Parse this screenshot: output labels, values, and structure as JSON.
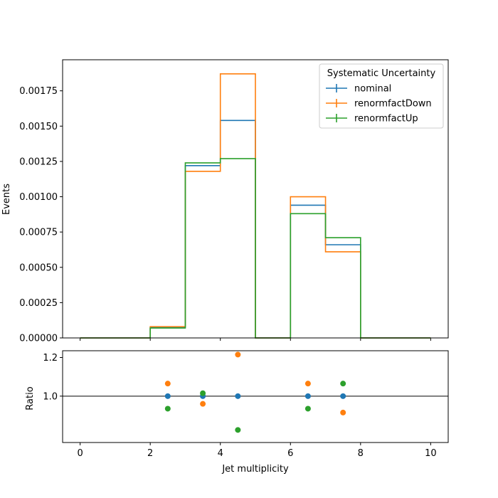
{
  "chart_data": {
    "type": "histogram-with-ratio",
    "main": {
      "type": "step",
      "ylabel": "Events",
      "ylim": [
        0,
        0.00197
      ],
      "yticks": [
        "0.00000",
        "0.00025",
        "0.00050",
        "0.00075",
        "0.00100",
        "0.00125",
        "0.00150",
        "0.00175"
      ],
      "bin_edges": [
        0,
        1,
        2,
        3,
        4,
        5,
        6,
        7,
        8,
        9,
        10
      ],
      "series": [
        {
          "name": "nominal",
          "color": "#1f77b4",
          "values": [
            0,
            0,
            7.5e-05,
            0.00122,
            0.00154,
            0,
            0.00094,
            0.00066,
            0,
            0
          ]
        },
        {
          "name": "renormfactDown",
          "color": "#ff7f0e",
          "values": [
            0,
            0,
            8e-05,
            0.00118,
            0.00187,
            0,
            0.001,
            0.00061,
            0,
            0
          ]
        },
        {
          "name": "renormfactUp",
          "color": "#2ca02c",
          "values": [
            0,
            0,
            7e-05,
            0.00124,
            0.00127,
            0,
            0.00088,
            0.00071,
            0,
            0
          ]
        }
      ],
      "legend": {
        "title": "Systematic Uncertainty",
        "position": "top-right"
      }
    },
    "ratio": {
      "type": "scatter",
      "ylabel": "Ratio",
      "xlabel": "Jet multiplicity",
      "xlim": [
        -0.5,
        10.5
      ],
      "ylim": [
        0.76,
        1.235
      ],
      "yticks": [
        "1.0",
        "1.2"
      ],
      "xticks": [
        "0",
        "2",
        "4",
        "6",
        "8",
        "10"
      ],
      "reference_line": 1.0,
      "series": [
        {
          "name": "nominal",
          "color": "#1f77b4",
          "x": [
            2.5,
            3.5,
            4.5,
            6.5,
            7.5
          ],
          "y": [
            1.0,
            1.0,
            1.0,
            1.0,
            1.0
          ]
        },
        {
          "name": "renormfactDown",
          "color": "#ff7f0e",
          "x": [
            2.5,
            3.5,
            4.5,
            6.5,
            7.5
          ],
          "y": [
            1.065,
            0.96,
            1.215,
            1.065,
            0.915
          ]
        },
        {
          "name": "renormfactUp",
          "color": "#2ca02c",
          "x": [
            2.5,
            3.5,
            4.5,
            6.5,
            7.5
          ],
          "y": [
            0.935,
            1.015,
            0.825,
            0.935,
            1.065
          ]
        }
      ]
    }
  }
}
